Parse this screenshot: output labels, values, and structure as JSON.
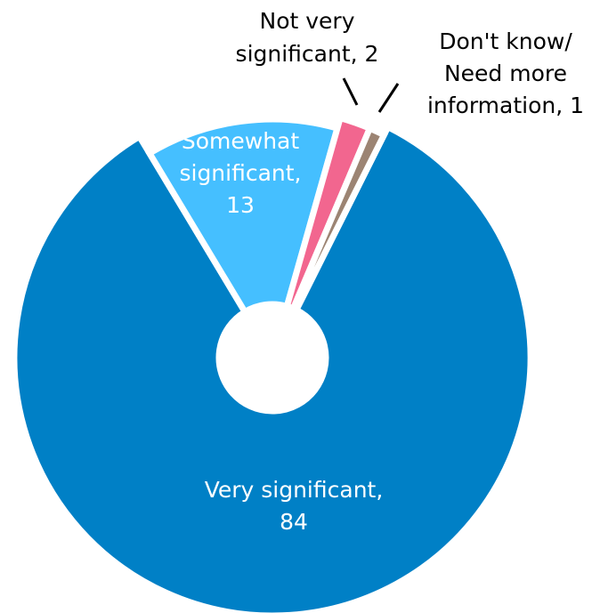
{
  "chart_data": {
    "type": "donut",
    "categories": [
      "Very significant",
      "Somewhat significant",
      "Not very significant",
      "Don't know/ Need more information"
    ],
    "values": [
      84,
      13,
      2,
      1
    ],
    "labels": [
      [
        "Very significant,",
        "84"
      ],
      [
        "Somewhat",
        "significant,",
        "13"
      ],
      [
        "Not very",
        "significant, 2"
      ],
      [
        "Don't know/",
        "Need more",
        "information, 1"
      ]
    ],
    "colors": [
      "#0080c6",
      "#45bfff",
      "#f2668f",
      "#9c8473"
    ]
  }
}
